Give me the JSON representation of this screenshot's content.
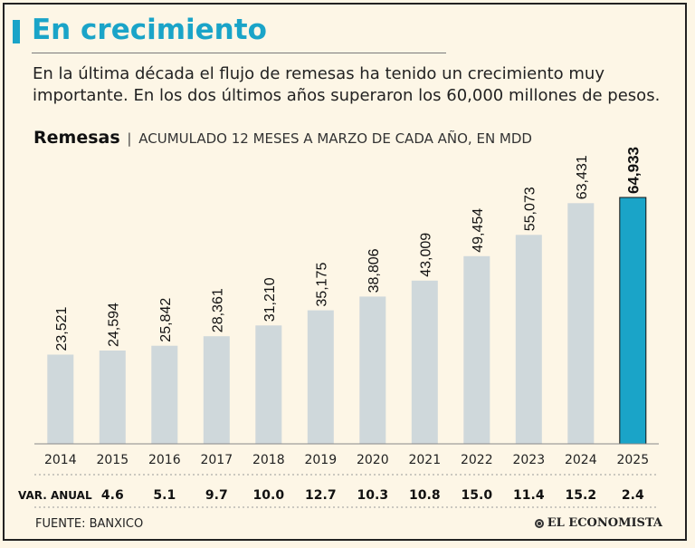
{
  "header": {
    "title": "En crecimiento",
    "subtitle": "En la última década el flujo de remesas ha tenido un crecimiento muy importante. En los dos últimos años superaron los 60,000 millones de pesos.",
    "chart_title_bold": "Remesas",
    "chart_title_sep": "|",
    "chart_title_rest": "ACUMULADO 12 MESES A MARZO DE CADA AÑO,  EN MDD"
  },
  "footer": {
    "source": "FUENTE: BANXICO",
    "brand": "EL ECONOMISTA"
  },
  "colors": {
    "accent": "#1aa4c8",
    "bar": "#cfd8db",
    "highlight_bar": "#1aa4c8"
  },
  "chart_data": {
    "type": "bar",
    "title": "Remesas",
    "subtitle": "ACUMULADO 12 MESES A MARZO DE CADA AÑO,  EN MDD",
    "categories": [
      "2014",
      "2015",
      "2016",
      "2017",
      "2018",
      "2019",
      "2020",
      "2021",
      "2022",
      "2023",
      "2024",
      "2025"
    ],
    "values": [
      23521,
      24594,
      25842,
      28361,
      31210,
      35175,
      38806,
      43009,
      49454,
      55073,
      63431,
      64933
    ],
    "value_labels": [
      "23,521",
      "24,594",
      "25,842",
      "28,361",
      "31,210",
      "35,175",
      "38,806",
      "43,009",
      "49,454",
      "55,073",
      "63,431",
      "64,933"
    ],
    "highlight_index": 11,
    "secondary_row": {
      "label": "VAR. ANUAL",
      "values": [
        "4.6",
        "5.1",
        "9.7",
        "10.0",
        "12.7",
        "10.3",
        "10.8",
        "15.0",
        "11.4",
        "15.2",
        "2.4"
      ]
    },
    "xlabel": "",
    "ylabel": "",
    "ylim": [
      0,
      74000
    ],
    "grid": false
  }
}
